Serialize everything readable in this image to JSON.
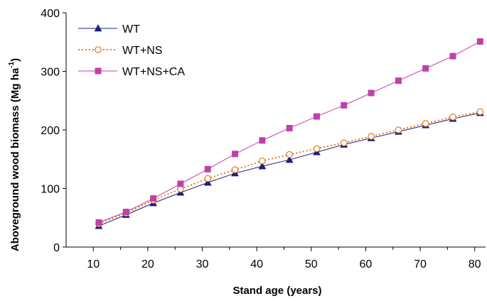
{
  "chart_data": {
    "type": "line",
    "xlabel": "Stand age (years)",
    "ylabel_main": "Aboveground wood biomass (Mg ha",
    "ylabel_sup": "-1",
    "ylabel_end": ")",
    "xlim": [
      5,
      82
    ],
    "ylim": [
      0,
      400
    ],
    "xticks": [
      10,
      20,
      30,
      40,
      50,
      60,
      70,
      80
    ],
    "yticks": [
      0,
      100,
      200,
      300,
      400
    ],
    "legend_position": "top-left",
    "x": [
      11,
      16,
      21,
      26,
      31,
      36,
      41,
      46,
      51,
      56,
      61,
      66,
      71,
      76,
      81
    ],
    "series": [
      {
        "name": "WT",
        "color": "#1f1f7a",
        "marker": "triangle",
        "line": "solid",
        "values": [
          36,
          55,
          75,
          93,
          110,
          126,
          138,
          149,
          162,
          175,
          186,
          197,
          208,
          219,
          229
        ]
      },
      {
        "name": "WT+NS",
        "color": "#e07b1a",
        "marker": "circle",
        "line": "dotted",
        "values": [
          40,
          58,
          80,
          99,
          117,
          132,
          147,
          158,
          168,
          178,
          189,
          200,
          211,
          222,
          231
        ]
      },
      {
        "name": "WT+NS+CA",
        "color": "#c040a8",
        "marker": "square",
        "line": "solid",
        "values": [
          42,
          60,
          83,
          108,
          133,
          159,
          182,
          203,
          223,
          242,
          263,
          284,
          305,
          326,
          351
        ]
      }
    ]
  }
}
